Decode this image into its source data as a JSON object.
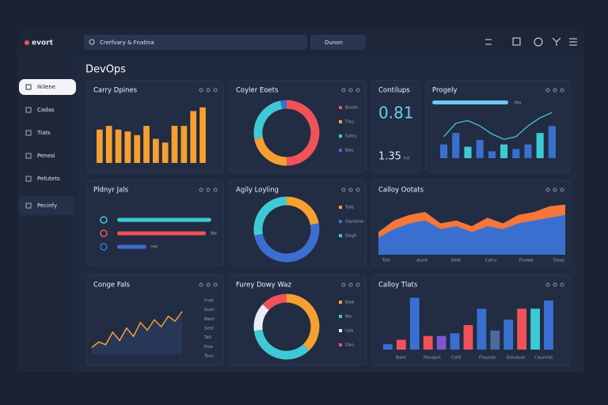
{
  "header": {
    "logo": "evort",
    "search": "Crerfvary & Fnatina",
    "dropdown": "Dunon"
  },
  "page_title": "DevOps",
  "sidebar": [
    "Ikilene",
    "Cadas",
    "Tiats",
    "Penesi",
    "Pefutets",
    "Pecinfy"
  ],
  "panels": [
    {
      "title": "Carry Dpines",
      "type": "bar",
      "color": "#f5a030",
      "values": [
        36,
        40,
        36,
        34,
        30,
        40,
        26,
        22,
        40,
        40,
        56,
        60
      ],
      "ylim": [
        0,
        70
      ]
    },
    {
      "title": "Coyler Eoets",
      "type": "donut",
      "segments": [
        {
          "name": "Boote",
          "color": "#f0525a",
          "value": 50
        },
        {
          "name": "Tlos",
          "color": "#f5a030",
          "value": 22
        },
        {
          "name": "Satry",
          "color": "#3ec9d6",
          "value": 25
        },
        {
          "name": "Bdo",
          "color": "#3a6fd0",
          "value": 3
        }
      ]
    },
    {
      "title": "Contilups",
      "type": "kpi",
      "value": 0.81,
      "sub": 1.35,
      "unit": "hd"
    },
    {
      "title": "Progely",
      "type": "combo",
      "progress": 80,
      "progress_label": "Ma",
      "bar_color": "#3a6fd0",
      "line_color": "#3ec9d6",
      "bars": [
        30,
        55,
        25,
        40,
        15,
        30,
        20,
        30,
        55,
        70
      ],
      "line": [
        40,
        65,
        70,
        60,
        45,
        35,
        40,
        60,
        75,
        85
      ],
      "ylim": [
        0,
        100
      ]
    },
    {
      "title": "Pldnyr Jals",
      "type": "hbar",
      "xlim": [
        0,
        100
      ],
      "series": [
        {
          "color": "#3ec9d6",
          "value": 90
        },
        {
          "color": "#f0525a",
          "value": 85,
          "name": "Nd"
        },
        {
          "color": "#3a6fd0",
          "value": 28,
          "name": "Hd"
        }
      ]
    },
    {
      "title": "Agily Loyling",
      "type": "donut",
      "segments": [
        {
          "name": "Tolb",
          "color": "#f5a030",
          "value": 22
        },
        {
          "name": "Oamane",
          "color": "#3a6fd0",
          "value": 50
        },
        {
          "name": "Dagh",
          "color": "#3ec9d6",
          "value": 28
        }
      ]
    },
    {
      "title": "Calloy Ootats",
      "type": "area",
      "categories": [
        "Tod",
        "Ausd",
        "Sedt",
        "Catry",
        "Fnewe",
        "Dooy"
      ],
      "ylim": [
        0,
        100
      ],
      "series": [
        {
          "color": "#f5773a",
          "values": [
            40,
            60,
            70,
            75,
            55,
            60,
            50,
            65,
            55,
            70,
            75,
            85,
            88
          ]
        },
        {
          "color": "#3a6fd0",
          "values": [
            30,
            45,
            55,
            60,
            45,
            50,
            40,
            50,
            45,
            55,
            60,
            65,
            70
          ]
        }
      ]
    },
    {
      "title": "Conge Fals",
      "type": "line",
      "color": "#f5a030",
      "values": [
        10,
        18,
        14,
        32,
        20,
        38,
        26,
        46,
        35,
        50,
        40,
        55,
        48,
        62
      ],
      "ylim": [
        0,
        80
      ],
      "ylabels": [
        "Fnet",
        "Suot",
        "Bent",
        "Sest",
        "Tell",
        "Foiz",
        "Tous"
      ]
    },
    {
      "title": "Furey Dowy Waz",
      "type": "donut",
      "segments": [
        {
          "name": "Baw",
          "color": "#f5a030",
          "value": 38
        },
        {
          "name": "Blo",
          "color": "#3ec9d6",
          "value": 35
        },
        {
          "name": "Uak",
          "color": "#e8ecf4",
          "value": 14
        },
        {
          "name": "Dao",
          "color": "#f0525a",
          "value": 13
        }
      ]
    },
    {
      "title": "Calloy Tlats",
      "type": "bars",
      "axis_labels": [
        "Bant",
        "Fenapst",
        "Cotil",
        "Fleyese",
        "Eenduse",
        "Cauntlat"
      ],
      "ylim": [
        0,
        100
      ],
      "colors": [
        "#3a6fd0",
        "#f0525a",
        "#3a6fd0",
        "#f0525a",
        "#7a5ad0",
        "#3a6fd0",
        "#f0525a",
        "#3a6fd0",
        "#4a6aa0",
        "#3a6fd0",
        "#f0525a",
        "#3ec9d6",
        "#3a6fd0"
      ],
      "values": [
        10,
        18,
        95,
        25,
        25,
        30,
        45,
        75,
        35,
        55,
        75,
        75,
        90
      ]
    }
  ]
}
